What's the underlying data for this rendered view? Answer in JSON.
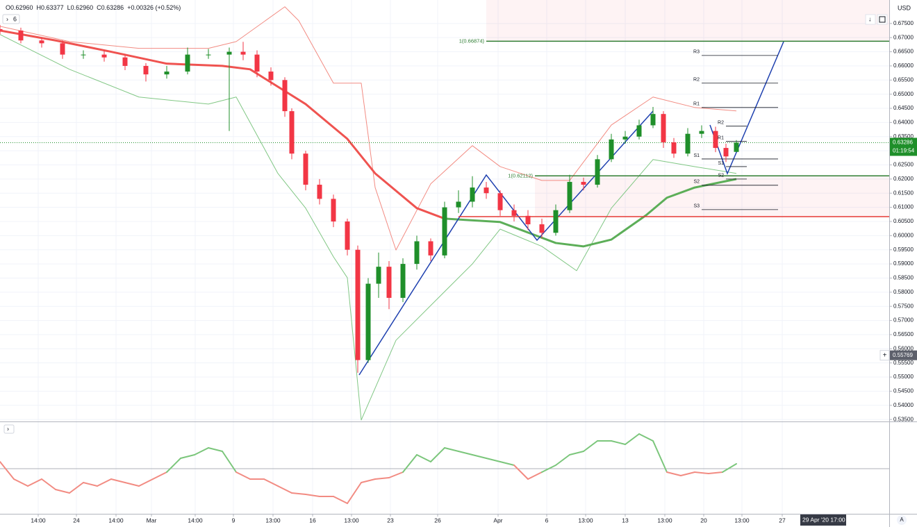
{
  "chart_data": {
    "type": "candlestick",
    "header": [
      "O0.62960",
      "H0.63377",
      "L0.62960",
      "C0.63286",
      "+0.00326 (+0.52%)"
    ],
    "interval": "6",
    "currency": "USD",
    "crosshair_date": "29 Apr '20  17:00",
    "scale_mode": "A",
    "xlim": [
      0,
      256
    ],
    "ylim": [
      0.5343,
      0.6833
    ],
    "grid": true,
    "up_color": "#1f8f2a",
    "down_color": "#f23645",
    "xticks": [
      {
        "value": 11,
        "label": "14:00"
      },
      {
        "value": 22,
        "label": "24"
      },
      {
        "value": 33.4,
        "label": "14:00"
      },
      {
        "value": 43.6,
        "label": "Mar"
      },
      {
        "value": 56.2,
        "label": "14:00"
      },
      {
        "value": 67.2,
        "label": "9"
      },
      {
        "value": 78.6,
        "label": "13:00"
      },
      {
        "value": 90,
        "label": "16"
      },
      {
        "value": 101.2,
        "label": "13:00"
      },
      {
        "value": 112.4,
        "label": "23"
      },
      {
        "value": 126,
        "label": "26"
      },
      {
        "value": 143.4,
        "label": "Apr"
      },
      {
        "value": 157.4,
        "label": "6"
      },
      {
        "value": 168.6,
        "label": "13:00"
      },
      {
        "value": 180,
        "label": "13"
      },
      {
        "value": 191.4,
        "label": "13:00"
      },
      {
        "value": 202.6,
        "label": "20"
      },
      {
        "value": 213.6,
        "label": "13:00"
      },
      {
        "value": 225.2,
        "label": "27"
      }
    ],
    "yticks": [
      {
        "value": 0.535,
        "label": "0.53500"
      },
      {
        "value": 0.54,
        "label": "0.54000"
      },
      {
        "value": 0.545,
        "label": "0.54500"
      },
      {
        "value": 0.55,
        "label": "0.55000"
      },
      {
        "value": 0.555,
        "label": "0.55500"
      },
      {
        "value": 0.56,
        "label": "0.56000"
      },
      {
        "value": 0.565,
        "label": "0.56500"
      },
      {
        "value": 0.57,
        "label": "0.57000"
      },
      {
        "value": 0.575,
        "label": "0.57500"
      },
      {
        "value": 0.58,
        "label": "0.58000"
      },
      {
        "value": 0.585,
        "label": "0.58500"
      },
      {
        "value": 0.59,
        "label": "0.59000"
      },
      {
        "value": 0.595,
        "label": "0.59500"
      },
      {
        "value": 0.6,
        "label": "0.60000"
      },
      {
        "value": 0.605,
        "label": "0.60500"
      },
      {
        "value": 0.61,
        "label": "0.61000"
      },
      {
        "value": 0.615,
        "label": "0.61500"
      },
      {
        "value": 0.62,
        "label": "0.62000"
      },
      {
        "value": 0.625,
        "label": "0.62500"
      },
      {
        "value": 0.63,
        "label": "0.63000"
      },
      {
        "value": 0.635,
        "label": "0.63500"
      },
      {
        "value": 0.64,
        "label": "0.64000"
      },
      {
        "value": 0.645,
        "label": "0.64500"
      },
      {
        "value": 0.65,
        "label": "0.65000"
      },
      {
        "value": 0.655,
        "label": "0.65500"
      },
      {
        "value": 0.66,
        "label": "0.66000"
      },
      {
        "value": 0.665,
        "label": "0.66500"
      },
      {
        "value": 0.67,
        "label": "0.67000"
      },
      {
        "value": 0.675,
        "label": "0.67500"
      }
    ],
    "candles": {
      "x": [
        0,
        6,
        12,
        18,
        24,
        30,
        36,
        42,
        48,
        54,
        60,
        66,
        70,
        74,
        78,
        82,
        84,
        88,
        92,
        96,
        100,
        103,
        106,
        109,
        112,
        116,
        120,
        124,
        128,
        132,
        136,
        140,
        144,
        148,
        152,
        156,
        160,
        164,
        168,
        172,
        176,
        180,
        184,
        188,
        191,
        194,
        198,
        202,
        206,
        209,
        212
      ],
      "open": [
        0.673,
        0.6725,
        0.669,
        0.668,
        0.664,
        0.664,
        0.663,
        0.66,
        0.657,
        0.658,
        0.664,
        0.664,
        0.665,
        0.664,
        0.658,
        0.655,
        0.644,
        0.629,
        0.618,
        0.613,
        0.605,
        0.595,
        0.556,
        0.583,
        0.589,
        0.578,
        0.59,
        0.598,
        0.593,
        0.61,
        0.612,
        0.617,
        0.615,
        0.609,
        0.607,
        0.604,
        0.601,
        0.609,
        0.619,
        0.618,
        0.627,
        0.634,
        0.635,
        0.639,
        0.643,
        0.633,
        0.629,
        0.636,
        0.637,
        0.631,
        0.6296
      ],
      "high": [
        0.6745,
        0.6735,
        0.67,
        0.669,
        0.6655,
        0.6655,
        0.664,
        0.661,
        0.66,
        0.6665,
        0.666,
        0.6665,
        0.6685,
        0.6655,
        0.6595,
        0.656,
        0.645,
        0.63,
        0.62,
        0.6145,
        0.606,
        0.5965,
        0.585,
        0.594,
        0.591,
        0.592,
        0.6,
        0.599,
        0.612,
        0.616,
        0.621,
        0.619,
        0.616,
        0.611,
        0.609,
        0.606,
        0.611,
        0.6215,
        0.6205,
        0.6285,
        0.636,
        0.637,
        0.641,
        0.6455,
        0.644,
        0.6345,
        0.638,
        0.639,
        0.6385,
        0.6325,
        0.63377
      ],
      "low": [
        0.6712,
        0.668,
        0.6665,
        0.6625,
        0.6625,
        0.6615,
        0.6585,
        0.6545,
        0.6555,
        0.657,
        0.6625,
        0.637,
        0.662,
        0.656,
        0.653,
        0.642,
        0.627,
        0.616,
        0.611,
        0.603,
        0.593,
        0.5515,
        0.555,
        0.578,
        0.574,
        0.5765,
        0.588,
        0.591,
        0.592,
        0.608,
        0.61,
        0.613,
        0.607,
        0.605,
        0.602,
        0.599,
        0.6,
        0.608,
        0.616,
        0.617,
        0.626,
        0.6325,
        0.634,
        0.638,
        0.631,
        0.6275,
        0.628,
        0.6345,
        0.6295,
        0.626,
        0.6296
      ],
      "close": [
        0.6725,
        0.669,
        0.668,
        0.664,
        0.664,
        0.663,
        0.66,
        0.657,
        0.658,
        0.664,
        0.664,
        0.665,
        0.664,
        0.658,
        0.655,
        0.644,
        0.629,
        0.618,
        0.613,
        0.605,
        0.595,
        0.556,
        0.583,
        0.589,
        0.578,
        0.59,
        0.598,
        0.593,
        0.61,
        0.612,
        0.617,
        0.615,
        0.609,
        0.607,
        0.604,
        0.601,
        0.609,
        0.619,
        0.618,
        0.627,
        0.634,
        0.635,
        0.639,
        0.643,
        0.633,
        0.629,
        0.636,
        0.637,
        0.631,
        0.628,
        0.63286
      ]
    },
    "overlays": [
      {
        "color": "#f28b82",
        "width": 1,
        "x": [
          0,
          20,
          40,
          60,
          68,
          82,
          86,
          96,
          104,
          108,
          114,
          124,
          136,
          144,
          156,
          164,
          176,
          188,
          200,
          212
        ],
        "values": [
          0.674,
          0.6686,
          0.6662,
          0.6662,
          0.6686,
          0.6809,
          0.676,
          0.6539,
          0.6539,
          0.617,
          0.5949,
          0.6183,
          0.6318,
          0.6244,
          0.6195,
          0.6195,
          0.6391,
          0.649,
          0.6453,
          0.6441
        ]
      },
      {
        "color": "#81c784",
        "width": 1,
        "x": [
          0,
          20,
          40,
          60,
          68,
          80,
          88,
          96,
          100,
          104,
          114,
          124,
          136,
          144,
          156,
          166,
          176,
          188,
          200,
          212
        ],
        "values": [
          0.6711,
          0.6588,
          0.649,
          0.6465,
          0.649,
          0.622,
          0.6097,
          0.5925,
          0.5851,
          0.5348,
          0.563,
          0.5753,
          0.59,
          0.6023,
          0.5962,
          0.5876,
          0.6097,
          0.6269,
          0.6244,
          0.622
        ]
      },
      {
        "color": "#ef5350",
        "width": 3,
        "x": [
          0,
          16,
          32,
          48,
          64,
          72,
          88,
          100,
          108,
          120,
          128
        ],
        "values": [
          0.6725,
          0.669,
          0.665,
          0.6608,
          0.66,
          0.6588,
          0.6465,
          0.6342,
          0.622,
          0.6097,
          0.606
        ]
      },
      {
        "color": "#5cae58",
        "width": 3,
        "x": [
          128,
          144,
          160,
          168,
          176,
          186,
          192,
          200,
          212
        ],
        "values": [
          0.606,
          0.6048,
          0.5974,
          0.5962,
          0.5986,
          0.6072,
          0.6134,
          0.617,
          0.62
        ]
      }
    ],
    "zones": [
      {
        "from": 0.66874,
        "to": 0.6833,
        "x": 140
      },
      {
        "from": 0.6067,
        "to": 0.62112,
        "x": 154
      }
    ],
    "levels": [
      {
        "label": "1(0.66874)",
        "value": 0.66874,
        "x": 140,
        "color": "#2e7d32"
      },
      {
        "label": "1(0.62112)",
        "value": 0.62112,
        "x": 154,
        "color": "#2e7d32"
      },
      {
        "value": 0.6067,
        "x": 132,
        "color": "#e53935"
      }
    ],
    "pivots": [
      {
        "x": [
          202,
          224
        ],
        "points": [
          {
            "label": "R3",
            "value": 0.6637
          },
          {
            "label": "R2",
            "value": 0.6539
          },
          {
            "label": "R1",
            "value": 0.6453
          },
          {
            "label": "S1",
            "value": 0.6271
          },
          {
            "label": "S2",
            "value": 0.6178
          },
          {
            "label": "S3",
            "value": 0.6092
          }
        ]
      },
      {
        "x": [
          209,
          215
        ],
        "points": [
          {
            "label": "R2",
            "value": 0.6387
          },
          {
            "label": "R1",
            "value": 0.6333
          },
          {
            "label": "S1",
            "value": 0.6244
          },
          {
            "label": "S2",
            "value": 0.62
          }
        ]
      }
    ],
    "price_labels": [
      {
        "value": 0.63286,
        "label": "0.63286",
        "color": "#1f8f2a"
      },
      {
        "value": 0.55769,
        "label": "0.55769",
        "color": "#5d606b"
      }
    ],
    "countdown": "01:19:54",
    "oscillator": {
      "ylim": [
        -65,
        65
      ],
      "up_color": "#7bc67b",
      "down_color": "#f28b82",
      "x": [
        0,
        4,
        8,
        12,
        16,
        20,
        24,
        28,
        32,
        36,
        40,
        44,
        48,
        52,
        56,
        60,
        64,
        68,
        72,
        76,
        80,
        84,
        88,
        92,
        96,
        100,
        104,
        108,
        112,
        116,
        120,
        124,
        128,
        132,
        136,
        140,
        144,
        148,
        152,
        156,
        160,
        164,
        168,
        172,
        176,
        180,
        184,
        188,
        192,
        196,
        200,
        204,
        208,
        212
      ],
      "values": [
        10,
        -15,
        -25,
        -15,
        -30,
        -35,
        -20,
        -25,
        -15,
        -20,
        -25,
        -15,
        -5,
        15,
        20,
        30,
        25,
        -5,
        -15,
        -15,
        -25,
        -35,
        -37,
        -40,
        -40,
        -50,
        -20,
        -15,
        -13,
        -5,
        20,
        10,
        30,
        25,
        20,
        15,
        10,
        5,
        -15,
        -5,
        5,
        20,
        25,
        40,
        40,
        35,
        50,
        40,
        -5,
        -10,
        -5,
        -7,
        -5,
        7
      ]
    }
  }
}
